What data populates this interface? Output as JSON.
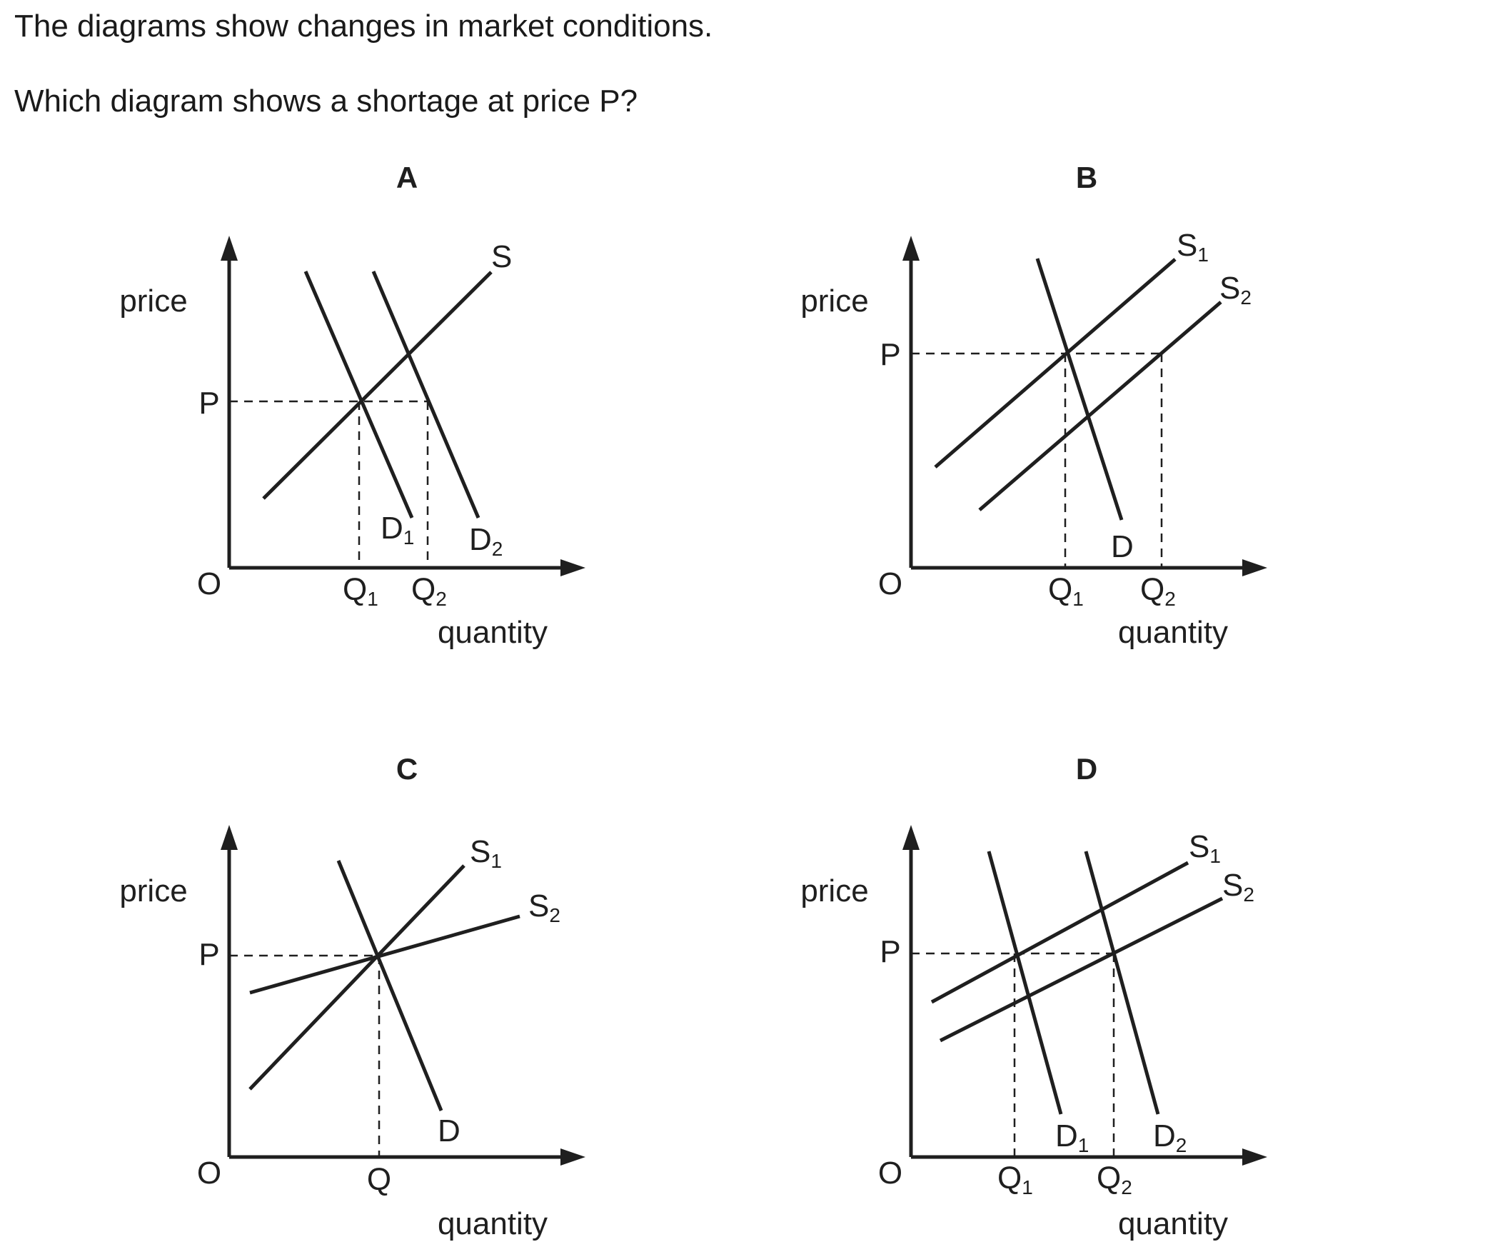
{
  "question": {
    "intro": "The diagrams show changes in market conditions.",
    "prompt": "Which diagram shows a shortage at price P?"
  },
  "axes": {
    "y": "price",
    "x": "quantity",
    "origin": "O"
  },
  "diagrams": [
    {
      "key": "A",
      "price_label": "P",
      "quantity_labels": [
        {
          "main": "Q",
          "sub": "1"
        },
        {
          "main": "Q",
          "sub": "2"
        }
      ],
      "curves": [
        {
          "main": "D",
          "sub": "1"
        },
        {
          "main": "D",
          "sub": "2"
        },
        {
          "main": "S",
          "sub": ""
        }
      ]
    },
    {
      "key": "B",
      "price_label": "P",
      "quantity_labels": [
        {
          "main": "Q",
          "sub": "1"
        },
        {
          "main": "Q",
          "sub": "2"
        }
      ],
      "curves": [
        {
          "main": "S",
          "sub": "1"
        },
        {
          "main": "S",
          "sub": "2"
        },
        {
          "main": "D",
          "sub": ""
        }
      ]
    },
    {
      "key": "C",
      "price_label": "P",
      "quantity_labels": [
        {
          "main": "Q",
          "sub": ""
        }
      ],
      "curves": [
        {
          "main": "S",
          "sub": "1"
        },
        {
          "main": "S",
          "sub": "2"
        },
        {
          "main": "D",
          "sub": ""
        }
      ]
    },
    {
      "key": "D",
      "price_label": "P",
      "quantity_labels": [
        {
          "main": "Q",
          "sub": "1"
        },
        {
          "main": "Q",
          "sub": "2"
        }
      ],
      "curves": [
        {
          "main": "S",
          "sub": "1"
        },
        {
          "main": "S",
          "sub": "2"
        },
        {
          "main": "D",
          "sub": "1"
        },
        {
          "main": "D",
          "sub": "2"
        }
      ]
    }
  ]
}
